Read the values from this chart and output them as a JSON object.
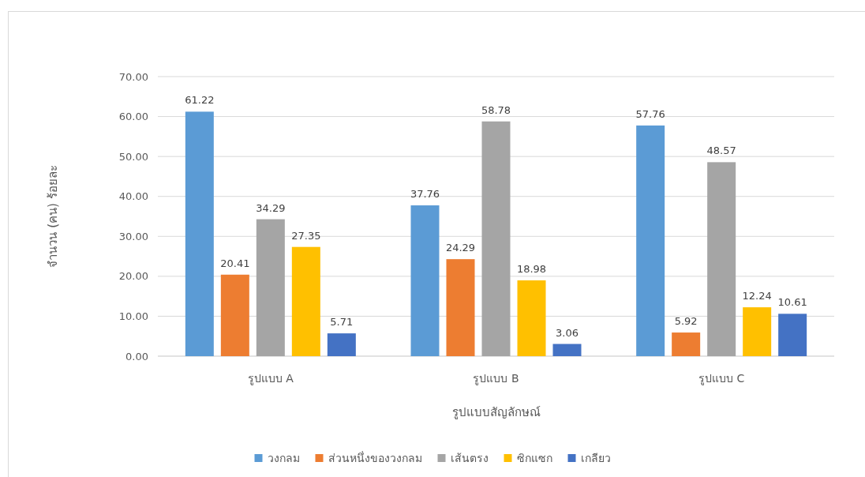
{
  "chart_data": {
    "type": "bar",
    "xlabel": "รูปแบบสัญลักษณ์",
    "ylabel": "จำนวน (คน) ร้อยละ",
    "categories": [
      "รูปแบบ A",
      "รูปแบบ B",
      "รูปแบบ C"
    ],
    "series": [
      {
        "name": "วงกลม",
        "color": "#5b9bd5",
        "values": [
          61.22,
          37.76,
          57.76
        ]
      },
      {
        "name": "ส่วนหนึ่งของวงกลม",
        "color": "#ed7d31",
        "values": [
          20.41,
          24.29,
          5.92
        ]
      },
      {
        "name": "เส้นตรง",
        "color": "#a5a5a5",
        "values": [
          34.29,
          58.78,
          48.57
        ]
      },
      {
        "name": "ซิกแซก",
        "color": "#ffc000",
        "values": [
          27.35,
          18.98,
          12.24
        ]
      },
      {
        "name": "เกลียว",
        "color": "#4472c4",
        "values": [
          5.71,
          3.06,
          10.61
        ]
      }
    ],
    "ylim": [
      0,
      70
    ],
    "yticks": [
      {
        "value": 0,
        "label": "0.00"
      },
      {
        "value": 10,
        "label": "10.00"
      },
      {
        "value": 20,
        "label": "20.00"
      },
      {
        "value": 30,
        "label": "30.00"
      },
      {
        "value": 40,
        "label": "40.00"
      },
      {
        "value": 50,
        "label": "50.00"
      },
      {
        "value": 60,
        "label": "60.00"
      },
      {
        "value": 70,
        "label": "70.00"
      }
    ],
    "grid": "y",
    "legend": "bottom",
    "data_labels": true
  }
}
